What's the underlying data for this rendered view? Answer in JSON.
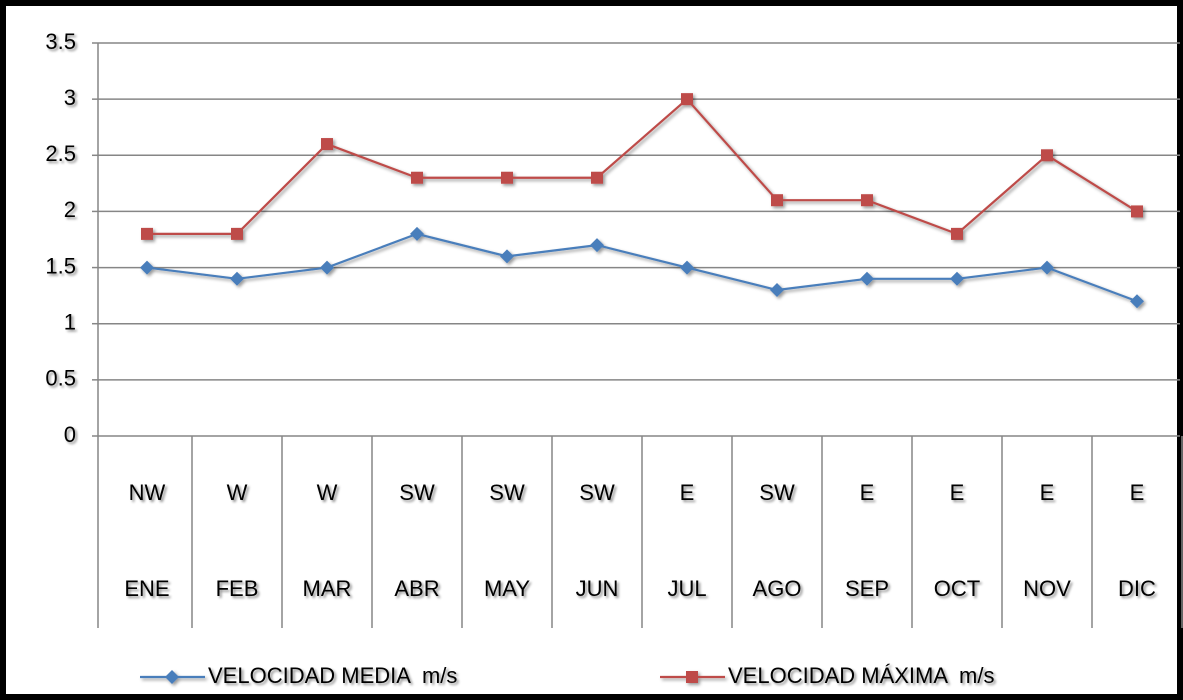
{
  "chart_data": {
    "type": "line",
    "categories": [
      "ENE",
      "FEB",
      "MAR",
      "ABR",
      "MAY",
      "JUN",
      "JUL",
      "AGO",
      "SEP",
      "OCT",
      "NOV",
      "DIC"
    ],
    "directions": [
      "NW",
      "W",
      "W",
      "SW",
      "SW",
      "SW",
      "E",
      "SW",
      "E",
      "E",
      "E",
      "E"
    ],
    "series": [
      {
        "name": "VELOCIDAD MEDIA  m/s",
        "color": "#4a7ebb",
        "marker": "diamond",
        "values": [
          1.5,
          1.4,
          1.5,
          1.8,
          1.6,
          1.7,
          1.5,
          1.3,
          1.4,
          1.4,
          1.5,
          1.2
        ]
      },
      {
        "name": "VELOCIDAD MÁXIMA  m/s",
        "color": "#be4b48",
        "marker": "square",
        "values": [
          1.8,
          1.8,
          2.6,
          2.3,
          2.3,
          2.3,
          3.0,
          2.1,
          2.1,
          1.8,
          2.5,
          2.0
        ]
      }
    ],
    "ylim": [
      0,
      3.5
    ],
    "yticks": [
      0,
      0.5,
      1,
      1.5,
      2,
      2.5,
      3,
      3.5
    ],
    "grid": true,
    "legend": "bottom"
  }
}
